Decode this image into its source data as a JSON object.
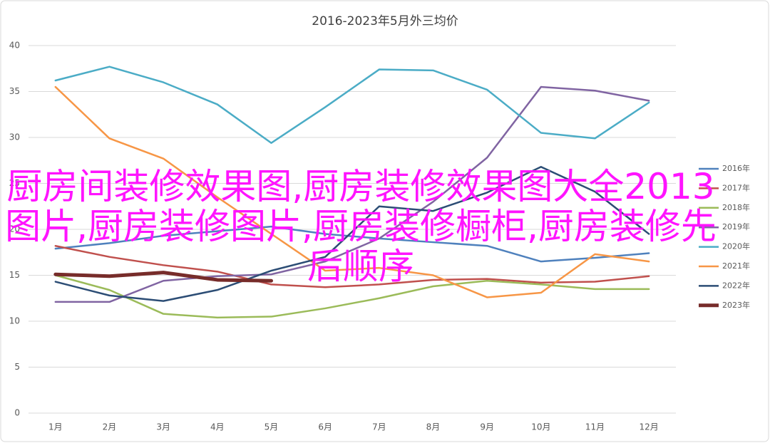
{
  "chart_data": {
    "type": "line",
    "title": "2016-2023年5月外三均价",
    "categories": [
      "1月",
      "2月",
      "3月",
      "4月",
      "5月",
      "6月",
      "7月",
      "8月",
      "9月",
      "10月",
      "11月",
      "12月"
    ],
    "series": [
      {
        "name": "2016年",
        "color": "#4f81bd",
        "values": [
          17.9,
          18.5,
          19.3,
          19.8,
          20.3,
          19.5,
          19.0,
          18.6,
          18.2,
          16.5,
          16.9,
          17.4
        ]
      },
      {
        "name": "2017年",
        "color": "#c0504d",
        "values": [
          18.2,
          17.0,
          16.1,
          15.4,
          14.0,
          13.7,
          14.0,
          14.5,
          14.6,
          14.2,
          14.3,
          14.9
        ]
      },
      {
        "name": "2018年",
        "color": "#9bbb59",
        "values": [
          15.0,
          13.4,
          10.8,
          10.4,
          10.5,
          11.4,
          12.5,
          13.8,
          14.4,
          14.0,
          13.5,
          13.5
        ]
      },
      {
        "name": "2019年",
        "color": "#8064a2",
        "values": [
          12.1,
          12.1,
          14.4,
          14.9,
          15.1,
          16.5,
          19.0,
          23.0,
          27.8,
          35.5,
          35.1,
          34.0
        ]
      },
      {
        "name": "2020年",
        "color": "#4bacc6",
        "values": [
          36.2,
          37.7,
          36.0,
          33.6,
          29.4,
          33.3,
          37.4,
          37.3,
          35.2,
          30.5,
          29.9,
          33.8
        ]
      },
      {
        "name": "2021年",
        "color": "#f79646",
        "values": [
          35.5,
          29.9,
          27.7,
          23.5,
          19.5,
          15.5,
          15.8,
          15.0,
          12.6,
          13.1,
          17.3,
          16.5
        ]
      },
      {
        "name": "2022年",
        "color": "#2c4d75",
        "values": [
          14.3,
          12.8,
          12.2,
          13.4,
          15.5,
          17.0,
          22.5,
          22.0,
          24.0,
          26.8,
          24.1,
          19.5
        ]
      },
      {
        "name": "2023年",
        "color": "#772c2a",
        "values": [
          15.1,
          14.9,
          15.3,
          14.5,
          14.4,
          null,
          null,
          null,
          null,
          null,
          null,
          null
        ]
      }
    ],
    "ylim": [
      0,
      40
    ],
    "yticks": [
      0,
      5,
      10,
      15,
      20,
      25,
      30,
      35,
      40
    ],
    "grid": true,
    "legend": "right"
  },
  "overlay_text": "厨房间装修效果图,厨房装修效果图大全2013图片,厨房装修图片,厨房装修橱柜,厨房装修先后顺序"
}
